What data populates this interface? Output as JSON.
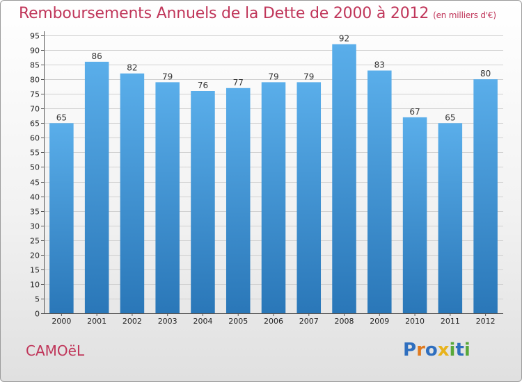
{
  "header": {
    "title": "Remboursements Annuels de la Dette de 2000 à 2012",
    "unit": "(en milliers d'€)"
  },
  "footer": {
    "place": "CAMOëL",
    "logo_letters": [
      "P",
      "r",
      "o",
      "x",
      "i",
      "t",
      "i"
    ]
  },
  "colors": {
    "title": "#c0365a",
    "bar_top": "#5aaeea",
    "bar_bottom": "#2a77b8",
    "logo": [
      "#2f6fbf",
      "#e07a1f",
      "#2f6fbf",
      "#e8b31c",
      "#58a83a",
      "#2f6fbf",
      "#58a83a"
    ]
  },
  "chart_data": {
    "type": "bar",
    "title": "Remboursements Annuels de la Dette de 2000 à 2012",
    "categories": [
      "2000",
      "2001",
      "2002",
      "2003",
      "2004",
      "2005",
      "2006",
      "2007",
      "2008",
      "2009",
      "2010",
      "2011",
      "2012"
    ],
    "values": [
      65,
      86,
      82,
      79,
      76,
      77,
      79,
      79,
      92,
      83,
      67,
      65,
      80
    ],
    "ylim": [
      0,
      95
    ],
    "yticks": [
      0,
      5,
      10,
      15,
      20,
      25,
      30,
      35,
      40,
      45,
      50,
      55,
      60,
      65,
      70,
      75,
      80,
      85,
      90,
      95
    ],
    "grid": true,
    "xlabel": "",
    "ylabel": ""
  }
}
